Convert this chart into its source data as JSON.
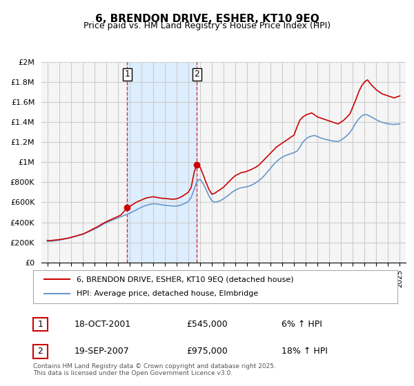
{
  "title": "6, BRENDON DRIVE, ESHER, KT10 9EQ",
  "subtitle": "Price paid vs. HM Land Registry's House Price Index (HPI)",
  "legend_line1": "6, BRENDON DRIVE, ESHER, KT10 9EQ (detached house)",
  "legend_line2": "HPI: Average price, detached house, Elmbridge",
  "footer": "Contains HM Land Registry data © Crown copyright and database right 2025.\nThis data is licensed under the Open Government Licence v3.0.",
  "sale1_label": "1",
  "sale1_date": "18-OCT-2001",
  "sale1_price": "£545,000",
  "sale1_hpi": "6% ↑ HPI",
  "sale2_label": "2",
  "sale2_date": "19-SEP-2007",
  "sale2_price": "£975,000",
  "sale2_hpi": "18% ↑ HPI",
  "sale1_x": 2001.8,
  "sale1_y": 545000,
  "sale2_x": 2007.72,
  "sale2_y": 975000,
  "red_color": "#cc0000",
  "blue_color": "#6699cc",
  "shade_color": "#ddeeff",
  "grid_color": "#cccccc",
  "bg_color": "#f5f5f5",
  "ylim": [
    0,
    2000000
  ],
  "xlim_left": 1994.5,
  "xlim_right": 2025.5,
  "yticks": [
    0,
    200000,
    400000,
    600000,
    800000,
    1000000,
    1200000,
    1400000,
    1600000,
    1800000,
    2000000
  ],
  "ytick_labels": [
    "£0",
    "£200K",
    "£400K",
    "£600K",
    "£800K",
    "£1M",
    "£1.2M",
    "£1.4M",
    "£1.6M",
    "£1.8M",
    "£2M"
  ],
  "xticks": [
    1995,
    1996,
    1997,
    1998,
    1999,
    2000,
    2001,
    2002,
    2003,
    2004,
    2005,
    2006,
    2007,
    2008,
    2009,
    2010,
    2011,
    2012,
    2013,
    2014,
    2015,
    2016,
    2017,
    2018,
    2019,
    2020,
    2021,
    2022,
    2023,
    2024,
    2025
  ],
  "red_data": {
    "x": [
      1995.0,
      1995.25,
      1995.5,
      1995.75,
      1996.0,
      1996.25,
      1996.5,
      1996.75,
      1997.0,
      1997.25,
      1997.5,
      1997.75,
      1998.0,
      1998.25,
      1998.5,
      1998.75,
      1999.0,
      1999.25,
      1999.5,
      1999.75,
      2000.0,
      2000.25,
      2000.5,
      2000.75,
      2001.0,
      2001.25,
      2001.5,
      2001.75,
      2001.8,
      2002.0,
      2002.25,
      2002.5,
      2002.75,
      2003.0,
      2003.25,
      2003.5,
      2003.75,
      2004.0,
      2004.25,
      2004.5,
      2004.75,
      2005.0,
      2005.25,
      2005.5,
      2005.75,
      2006.0,
      2006.25,
      2006.5,
      2006.75,
      2007.0,
      2007.25,
      2007.5,
      2007.72,
      2008.0,
      2008.25,
      2008.5,
      2008.75,
      2009.0,
      2009.25,
      2009.5,
      2009.75,
      2010.0,
      2010.25,
      2010.5,
      2010.75,
      2011.0,
      2011.25,
      2011.5,
      2011.75,
      2012.0,
      2012.25,
      2012.5,
      2012.75,
      2013.0,
      2013.25,
      2013.5,
      2013.75,
      2014.0,
      2014.25,
      2014.5,
      2014.75,
      2015.0,
      2015.25,
      2015.5,
      2015.75,
      2016.0,
      2016.25,
      2016.5,
      2016.75,
      2017.0,
      2017.25,
      2017.5,
      2017.75,
      2018.0,
      2018.25,
      2018.5,
      2018.75,
      2019.0,
      2019.25,
      2019.5,
      2019.75,
      2020.0,
      2020.25,
      2020.5,
      2020.75,
      2021.0,
      2021.25,
      2021.5,
      2021.75,
      2022.0,
      2022.25,
      2022.5,
      2022.75,
      2023.0,
      2023.25,
      2023.5,
      2023.75,
      2024.0,
      2024.25,
      2024.5,
      2024.75,
      2025.0
    ],
    "y": [
      220000,
      218000,
      222000,
      225000,
      228000,
      232000,
      238000,
      242000,
      250000,
      258000,
      265000,
      275000,
      282000,
      295000,
      310000,
      325000,
      340000,
      355000,
      372000,
      390000,
      405000,
      418000,
      432000,
      445000,
      458000,
      472000,
      505000,
      535000,
      545000,
      558000,
      575000,
      595000,
      610000,
      622000,
      635000,
      645000,
      650000,
      655000,
      650000,
      645000,
      640000,
      638000,
      635000,
      632000,
      630000,
      635000,
      645000,
      660000,
      680000,
      700000,
      750000,
      900000,
      975000,
      950000,
      880000,
      800000,
      730000,
      680000,
      690000,
      710000,
      730000,
      750000,
      780000,
      810000,
      840000,
      865000,
      880000,
      895000,
      900000,
      910000,
      920000,
      935000,
      950000,
      970000,
      1000000,
      1030000,
      1060000,
      1090000,
      1120000,
      1150000,
      1170000,
      1190000,
      1210000,
      1230000,
      1250000,
      1270000,
      1350000,
      1420000,
      1450000,
      1470000,
      1480000,
      1490000,
      1470000,
      1450000,
      1440000,
      1430000,
      1420000,
      1410000,
      1400000,
      1390000,
      1380000,
      1400000,
      1420000,
      1450000,
      1480000,
      1550000,
      1620000,
      1700000,
      1760000,
      1800000,
      1820000,
      1780000,
      1750000,
      1720000,
      1700000,
      1680000,
      1670000,
      1660000,
      1650000,
      1640000,
      1650000,
      1660000
    ]
  },
  "blue_data": {
    "x": [
      1995.0,
      1995.25,
      1995.5,
      1995.75,
      1996.0,
      1996.25,
      1996.5,
      1996.75,
      1997.0,
      1997.25,
      1997.5,
      1997.75,
      1998.0,
      1998.25,
      1998.5,
      1998.75,
      1999.0,
      1999.25,
      1999.5,
      1999.75,
      2000.0,
      2000.25,
      2000.5,
      2000.75,
      2001.0,
      2001.25,
      2001.5,
      2001.75,
      2002.0,
      2002.25,
      2002.5,
      2002.75,
      2003.0,
      2003.25,
      2003.5,
      2003.75,
      2004.0,
      2004.25,
      2004.5,
      2004.75,
      2005.0,
      2005.25,
      2005.5,
      2005.75,
      2006.0,
      2006.25,
      2006.5,
      2006.75,
      2007.0,
      2007.25,
      2007.5,
      2007.75,
      2008.0,
      2008.25,
      2008.5,
      2008.75,
      2009.0,
      2009.25,
      2009.5,
      2009.75,
      2010.0,
      2010.25,
      2010.5,
      2010.75,
      2011.0,
      2011.25,
      2011.5,
      2011.75,
      2012.0,
      2012.25,
      2012.5,
      2012.75,
      2013.0,
      2013.25,
      2013.5,
      2013.75,
      2014.0,
      2014.25,
      2014.5,
      2014.75,
      2015.0,
      2015.25,
      2015.5,
      2015.75,
      2016.0,
      2016.25,
      2016.5,
      2016.75,
      2017.0,
      2017.25,
      2017.5,
      2017.75,
      2018.0,
      2018.25,
      2018.5,
      2018.75,
      2019.0,
      2019.25,
      2019.5,
      2019.75,
      2020.0,
      2020.25,
      2020.5,
      2020.75,
      2021.0,
      2021.25,
      2021.5,
      2021.75,
      2022.0,
      2022.25,
      2022.5,
      2022.75,
      2023.0,
      2023.25,
      2023.5,
      2023.75,
      2024.0,
      2024.25,
      2024.5,
      2024.75,
      2025.0
    ],
    "y": [
      210000,
      212000,
      214000,
      218000,
      222000,
      228000,
      234000,
      240000,
      248000,
      256000,
      264000,
      272000,
      280000,
      292000,
      305000,
      318000,
      332000,
      347000,
      363000,
      380000,
      395000,
      408000,
      420000,
      432000,
      443000,
      455000,
      467000,
      478000,
      490000,
      505000,
      520000,
      535000,
      550000,
      562000,
      572000,
      580000,
      585000,
      583000,
      580000,
      575000,
      570000,
      567000,
      564000,
      562000,
      562000,
      568000,
      578000,
      592000,
      608000,
      650000,
      730000,
      810000,
      830000,
      790000,
      730000,
      665000,
      615000,
      600000,
      605000,
      618000,
      635000,
      655000,
      678000,
      702000,
      720000,
      735000,
      745000,
      750000,
      755000,
      765000,
      778000,
      795000,
      815000,
      840000,
      870000,
      905000,
      940000,
      975000,
      1005000,
      1030000,
      1050000,
      1065000,
      1075000,
      1085000,
      1095000,
      1110000,
      1150000,
      1200000,
      1230000,
      1250000,
      1260000,
      1265000,
      1255000,
      1242000,
      1232000,
      1225000,
      1218000,
      1212000,
      1208000,
      1205000,
      1220000,
      1240000,
      1265000,
      1295000,
      1340000,
      1390000,
      1430000,
      1460000,
      1475000,
      1470000,
      1455000,
      1438000,
      1422000,
      1408000,
      1396000,
      1388000,
      1382000,
      1378000,
      1375000,
      1378000,
      1382000
    ]
  }
}
